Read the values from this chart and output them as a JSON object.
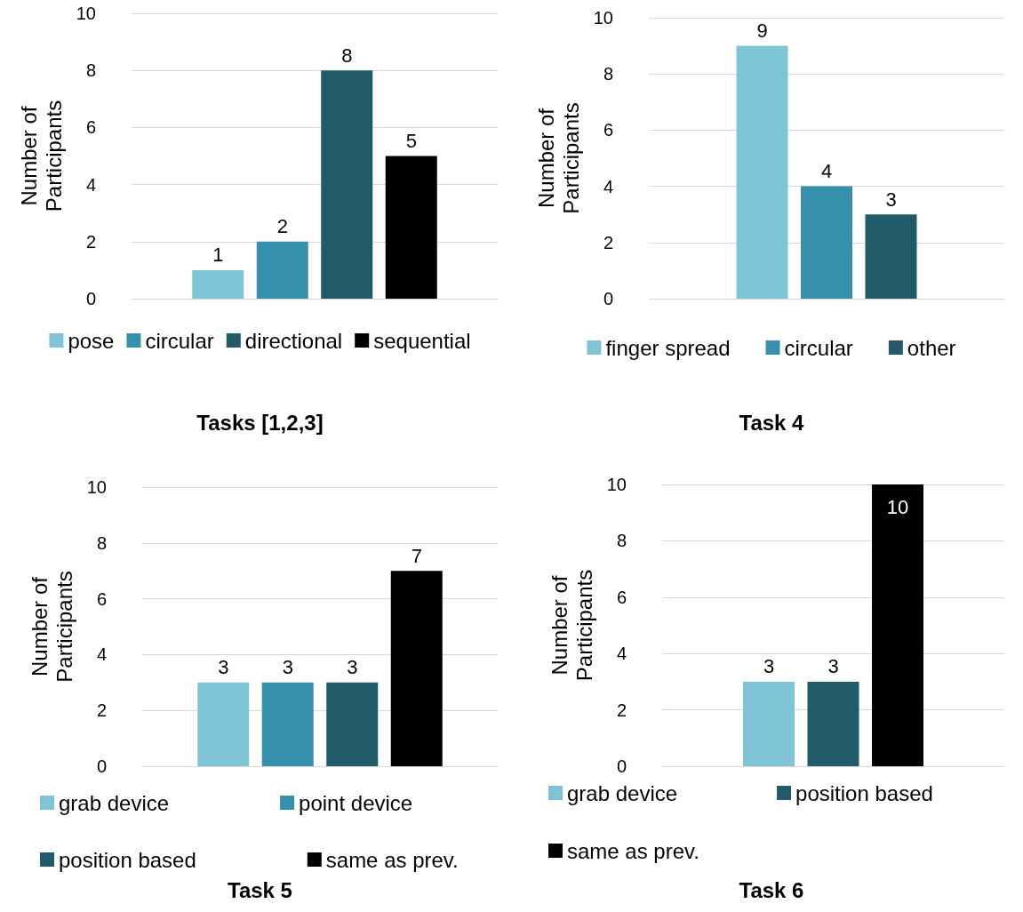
{
  "chart_data": [
    {
      "type": "bar",
      "title": "Tasks [1,2,3]",
      "ylabel": "Number of Participants",
      "categories": [
        null
      ],
      "ylim": [
        0,
        10
      ],
      "yticks": [
        0,
        2,
        4,
        6,
        8,
        10
      ],
      "grid": "y",
      "legend": "bottom",
      "data_labels": true,
      "series": [
        {
          "name": "pose",
          "color": "#7fc4d6",
          "values": [
            1
          ]
        },
        {
          "name": "circular",
          "color": "#3591ab",
          "values": [
            2
          ]
        },
        {
          "name": "directional",
          "color": "#215b6a",
          "values": [
            8
          ]
        },
        {
          "name": "sequential",
          "color": "#000000",
          "values": [
            5
          ]
        }
      ]
    },
    {
      "type": "bar",
      "title": "Task 4",
      "ylabel": "Number of Participants",
      "categories": [
        null
      ],
      "ylim": [
        0,
        10
      ],
      "yticks": [
        0,
        2,
        4,
        6,
        8,
        10
      ],
      "grid": "y",
      "legend": "bottom",
      "data_labels": true,
      "series": [
        {
          "name": "finger spread",
          "color": "#7fc4d6",
          "values": [
            9
          ]
        },
        {
          "name": "circular",
          "color": "#3591ab",
          "values": [
            4
          ]
        },
        {
          "name": "other",
          "color": "#215b6a",
          "values": [
            3
          ]
        }
      ]
    },
    {
      "type": "bar",
      "title": "Task 5",
      "ylabel": "Number of Participants",
      "categories": [
        null
      ],
      "ylim": [
        0,
        10
      ],
      "yticks": [
        0,
        2,
        4,
        6,
        8,
        10
      ],
      "grid": "y",
      "legend": "bottom",
      "data_labels": true,
      "series": [
        {
          "name": "grab device",
          "color": "#7fc4d6",
          "values": [
            3
          ]
        },
        {
          "name": "point device",
          "color": "#3591ab",
          "values": [
            3
          ]
        },
        {
          "name": "position based",
          "color": "#215b6a",
          "values": [
            3
          ]
        },
        {
          "name": "same as prev.",
          "color": "#000000",
          "values": [
            7
          ]
        }
      ]
    },
    {
      "type": "bar",
      "title": "Task 6",
      "ylabel": "Number of Participants",
      "categories": [
        null
      ],
      "ylim": [
        0,
        10
      ],
      "yticks": [
        0,
        2,
        4,
        6,
        8,
        10
      ],
      "grid": "y",
      "legend": "bottom",
      "data_labels": true,
      "series": [
        {
          "name": "grab device",
          "color": "#7fc4d6",
          "values": [
            3
          ]
        },
        {
          "name": "position based",
          "color": "#215b6a",
          "values": [
            3
          ]
        },
        {
          "name": "same as prev.",
          "color": "#000000",
          "values": [
            10
          ]
        }
      ]
    }
  ]
}
